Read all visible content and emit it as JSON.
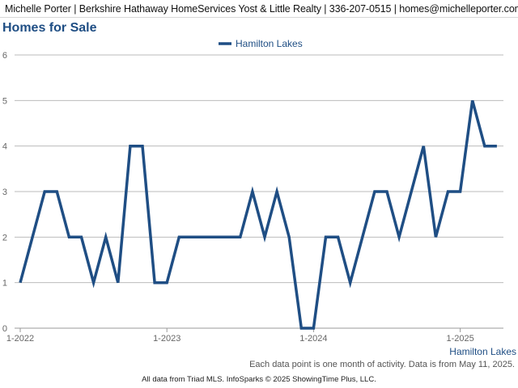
{
  "header": {
    "contact": "Michelle Porter | Berkshire Hathaway HomeServices Yost & Little Realty | 336-207-0515 | homes@michelleporter.com"
  },
  "page_title": "Homes for Sale",
  "note": "Each data point is one month of activity. Data is from May 11, 2025.",
  "footer": "All data from Triad MLS. InfoSparks © 2025 ShowingTime Plus, LLC.",
  "colors": {
    "series": "#1f4e84",
    "grid": "#bbbbbb",
    "axis_text": "#666666"
  },
  "chart_data": {
    "type": "line",
    "title": "Homes for Sale",
    "xlabel": "",
    "ylabel": "",
    "ylim": [
      0,
      6
    ],
    "yticks": [
      0,
      1,
      2,
      3,
      4,
      5,
      6
    ],
    "xticks": [
      "1-2022",
      "1-2023",
      "1-2024",
      "1-2025"
    ],
    "x_end_label": "Hamilton Lakes",
    "grid": true,
    "legend_position": "top-center",
    "x": [
      "2022-01",
      "2022-02",
      "2022-03",
      "2022-04",
      "2022-05",
      "2022-06",
      "2022-07",
      "2022-08",
      "2022-09",
      "2022-10",
      "2022-11",
      "2022-12",
      "2023-01",
      "2023-02",
      "2023-03",
      "2023-04",
      "2023-05",
      "2023-06",
      "2023-07",
      "2023-08",
      "2023-09",
      "2023-10",
      "2023-11",
      "2023-12",
      "2024-01",
      "2024-02",
      "2024-03",
      "2024-04",
      "2024-05",
      "2024-06",
      "2024-07",
      "2024-08",
      "2024-09",
      "2024-10",
      "2024-11",
      "2024-12",
      "2025-01",
      "2025-02",
      "2025-03",
      "2025-04"
    ],
    "series": [
      {
        "name": "Hamilton Lakes",
        "values": [
          1,
          2,
          3,
          3,
          2,
          2,
          1,
          2,
          1,
          4,
          4,
          1,
          1,
          2,
          2,
          2,
          2,
          2,
          2,
          3,
          2,
          3,
          2,
          0,
          0,
          2,
          2,
          1,
          2,
          3,
          3,
          2,
          3,
          4,
          2,
          3,
          3,
          5,
          4,
          4
        ]
      }
    ]
  }
}
